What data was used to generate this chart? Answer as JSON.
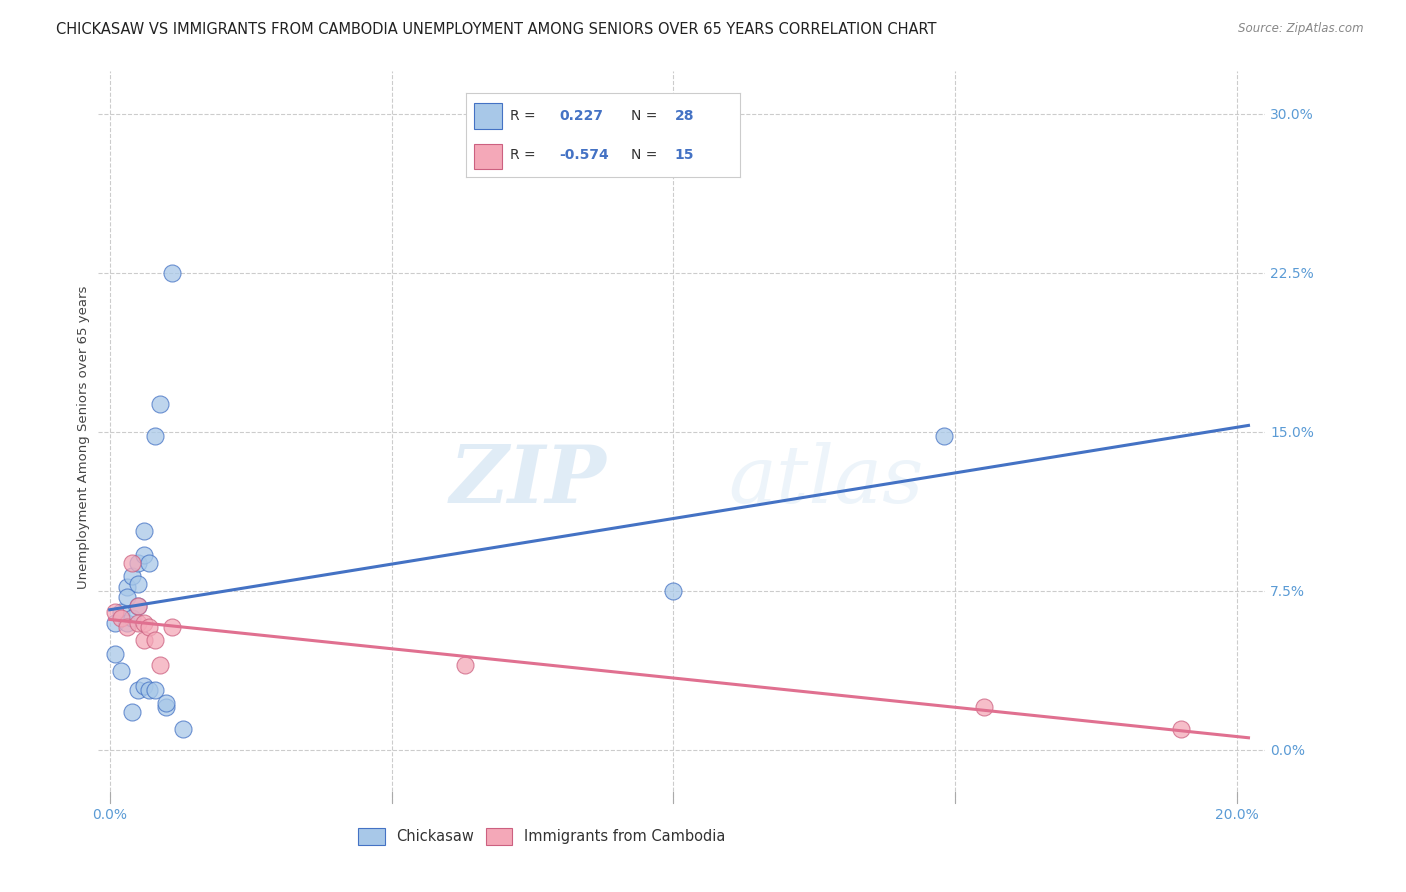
{
  "title": "CHICKASAW VS IMMIGRANTS FROM CAMBODIA UNEMPLOYMENT AMONG SENIORS OVER 65 YEARS CORRELATION CHART",
  "source": "Source: ZipAtlas.com",
  "ylabel": "Unemployment Among Seniors over 65 years",
  "xlim": [
    -0.002,
    0.205
  ],
  "ylim": [
    -0.025,
    0.32
  ],
  "chickasaw_color": "#a8c8e8",
  "cambodia_color": "#f4a8b8",
  "trendline_chickasaw_color": "#4472c4",
  "trendline_cambodia_color": "#e07090",
  "tick_color": "#5b9bd5",
  "background_color": "#ffffff",
  "grid_color": "#cccccc",
  "title_fontsize": 10.5,
  "axis_label_fontsize": 9.5,
  "tick_fontsize": 10,
  "watermark_text": "ZIPatlas",
  "chickasaw_x": [
    0.001,
    0.001,
    0.002,
    0.002,
    0.003,
    0.003,
    0.003,
    0.004,
    0.004,
    0.004,
    0.005,
    0.005,
    0.005,
    0.005,
    0.006,
    0.006,
    0.006,
    0.007,
    0.007,
    0.008,
    0.008,
    0.009,
    0.01,
    0.01,
    0.011,
    0.013,
    0.1,
    0.148
  ],
  "chickasaw_y": [
    0.06,
    0.045,
    0.065,
    0.037,
    0.077,
    0.072,
    0.06,
    0.082,
    0.062,
    0.018,
    0.088,
    0.078,
    0.068,
    0.028,
    0.103,
    0.092,
    0.03,
    0.088,
    0.028,
    0.148,
    0.028,
    0.163,
    0.02,
    0.022,
    0.225,
    0.01,
    0.075,
    0.148
  ],
  "cambodia_x": [
    0.001,
    0.002,
    0.003,
    0.004,
    0.005,
    0.005,
    0.006,
    0.006,
    0.007,
    0.008,
    0.009,
    0.011,
    0.063,
    0.155,
    0.19
  ],
  "cambodia_y": [
    0.065,
    0.062,
    0.058,
    0.088,
    0.068,
    0.06,
    0.052,
    0.06,
    0.058,
    0.052,
    0.04,
    0.058,
    0.04,
    0.02,
    0.01
  ]
}
